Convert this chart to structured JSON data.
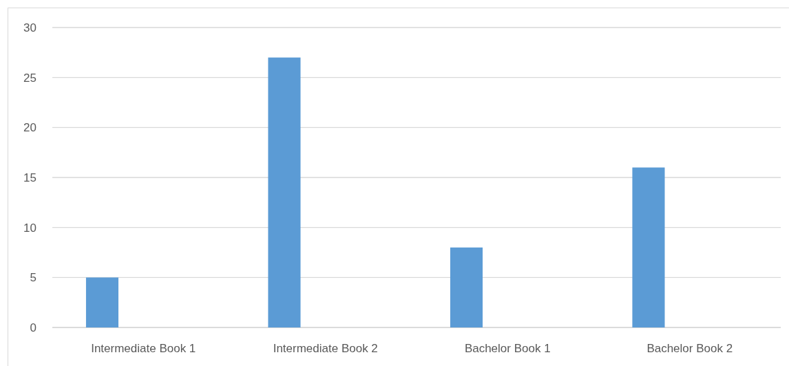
{
  "chart_data": {
    "type": "bar",
    "categories": [
      "Intermediate Book 1",
      "Intermediate Book 2",
      "Bachelor Book 1",
      "Bachelor Book 2"
    ],
    "values": [
      5,
      27,
      8,
      16
    ],
    "color": "#5b9bd5",
    "ylim": [
      0,
      30
    ],
    "yticks": [
      0,
      5,
      10,
      15,
      20,
      25,
      30
    ],
    "grid": "y"
  }
}
